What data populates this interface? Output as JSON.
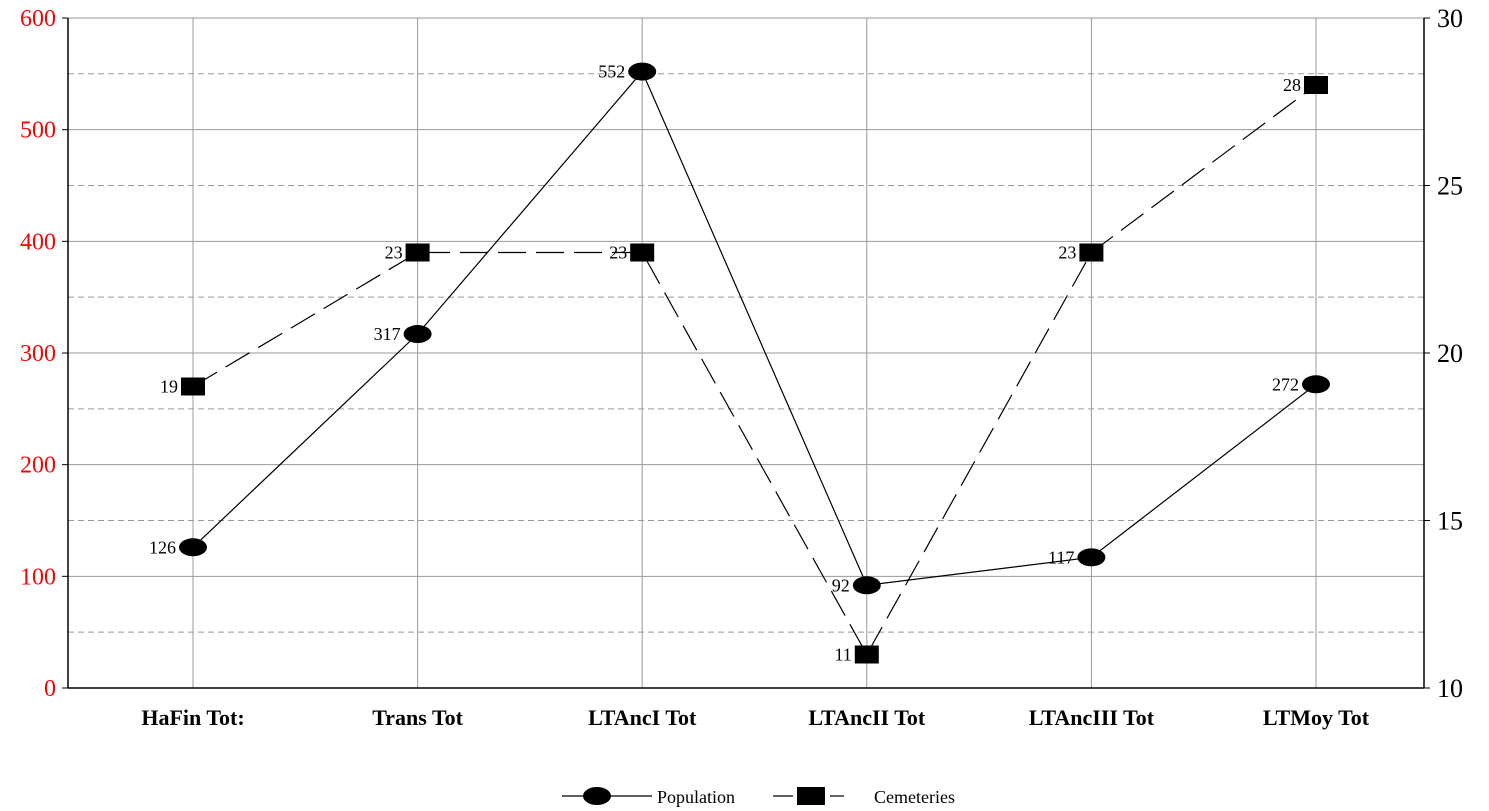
{
  "chart_data": {
    "type": "line",
    "categories": [
      "HaFin Tot:",
      "Trans Tot",
      "LTAncI Tot",
      "LTAncII Tot",
      "LTAncIII Tot",
      "LTMoy Tot"
    ],
    "series": [
      {
        "name": "Population",
        "axis": "left",
        "marker": "ellipse",
        "line_style": "solid",
        "values": [
          126,
          317,
          552,
          92,
          117,
          272
        ]
      },
      {
        "name": "Cemeteries",
        "axis": "right",
        "marker": "square",
        "line_style": "dashed",
        "values": [
          19,
          23,
          23,
          11,
          23,
          28
        ]
      }
    ],
    "y_left": {
      "range": [
        0,
        600
      ],
      "ticks": [
        "0",
        "100",
        "200",
        "300",
        "400",
        "500",
        "600"
      ],
      "tick_color": "#ff0000"
    },
    "y_right": {
      "range": [
        10,
        30
      ],
      "ticks": [
        "10",
        "15",
        "20",
        "25",
        "30"
      ]
    },
    "grid": true,
    "legend": "bottom-center"
  }
}
